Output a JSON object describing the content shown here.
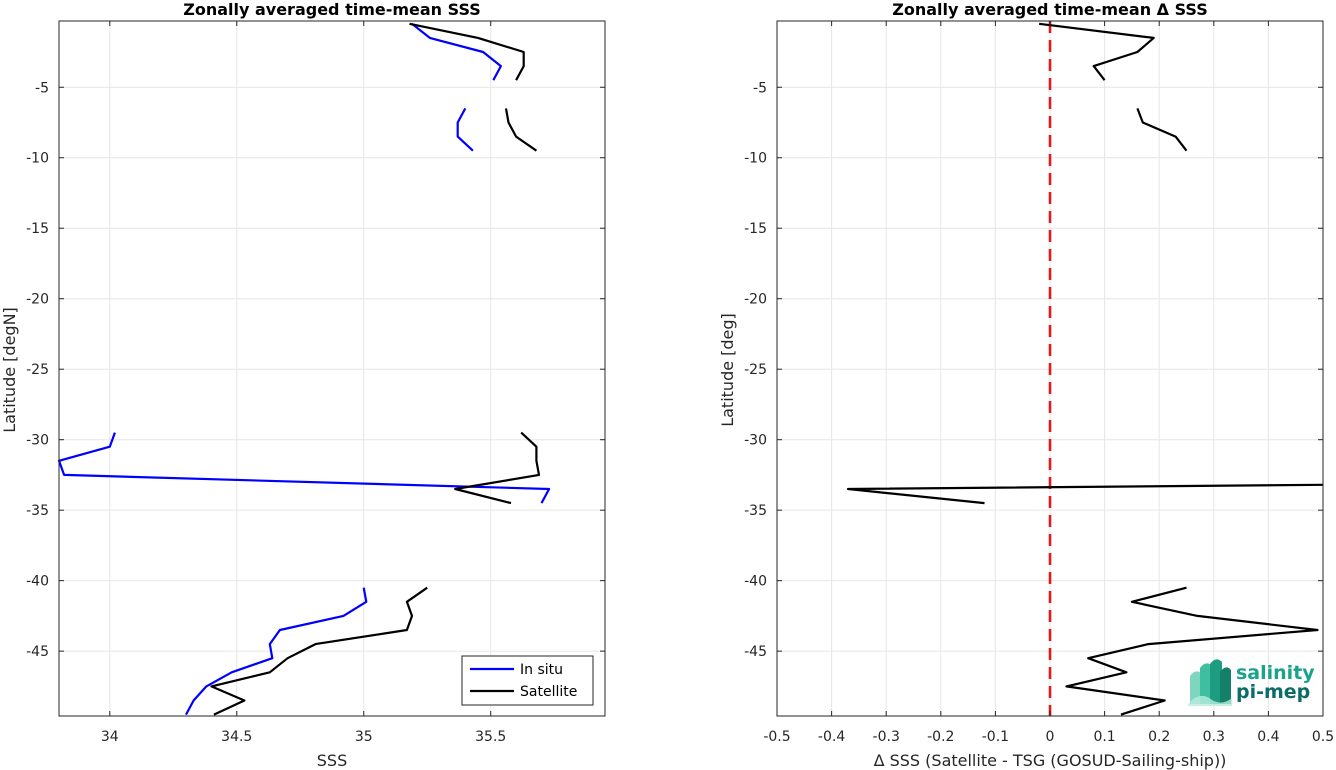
{
  "chart_data": [
    {
      "type": "line",
      "title": "Zonally averaged time-mean SSS",
      "xlabel": "SSS",
      "ylabel": "Latitude [degN]",
      "xlim": [
        33.8,
        35.95
      ],
      "ylim": [
        -49.6,
        -0.3
      ],
      "xticks": [
        34,
        34.5,
        35,
        35.5
      ],
      "xtick_labels": [
        "34",
        "34.5",
        "35",
        "35.5"
      ],
      "yticks": [
        -5,
        -10,
        -15,
        -20,
        -25,
        -30,
        -35,
        -40,
        -45
      ],
      "ytick_labels": [
        "-5",
        "-10",
        "-15",
        "-20",
        "-25",
        "-30",
        "-35",
        "-40",
        "-45"
      ],
      "grid": true,
      "legend_position": "bottom-right",
      "series": [
        {
          "name": "In situ",
          "color": "#0000ff",
          "segments": [
            [
              [
                35.19,
                -0.5
              ],
              [
                35.26,
                -1.5
              ],
              [
                35.47,
                -2.5
              ],
              [
                35.54,
                -3.5
              ],
              [
                35.51,
                -4.5
              ]
            ],
            [
              [
                35.4,
                -6.5
              ],
              [
                35.37,
                -7.5
              ],
              [
                35.37,
                -8.5
              ],
              [
                35.43,
                -9.5
              ]
            ],
            [
              [
                34.02,
                -29.5
              ],
              [
                34.0,
                -30.5
              ],
              [
                33.8,
                -31.5
              ],
              [
                33.82,
                -32.5
              ],
              [
                35.73,
                -33.5
              ],
              [
                35.7,
                -34.5
              ]
            ],
            [
              [
                35.0,
                -40.5
              ],
              [
                35.01,
                -41.5
              ],
              [
                34.92,
                -42.5
              ],
              [
                34.67,
                -43.5
              ],
              [
                34.63,
                -44.5
              ],
              [
                34.64,
                -45.5
              ],
              [
                34.48,
                -46.5
              ],
              [
                34.38,
                -47.5
              ],
              [
                34.33,
                -48.5
              ],
              [
                34.3,
                -49.5
              ]
            ]
          ]
        },
        {
          "name": "Satellite",
          "color": "#000000",
          "segments": [
            [
              [
                35.18,
                -0.5
              ],
              [
                35.45,
                -1.5
              ],
              [
                35.63,
                -2.5
              ],
              [
                35.63,
                -3.5
              ],
              [
                35.6,
                -4.5
              ]
            ],
            [
              [
                35.56,
                -6.5
              ],
              [
                35.57,
                -7.5
              ],
              [
                35.6,
                -8.5
              ],
              [
                35.68,
                -9.5
              ]
            ],
            [
              [
                35.62,
                -29.5
              ],
              [
                35.68,
                -30.5
              ],
              [
                35.68,
                -31.5
              ],
              [
                35.69,
                -32.5
              ],
              [
                35.36,
                -33.5
              ],
              [
                35.58,
                -34.5
              ]
            ],
            [
              [
                35.25,
                -40.5
              ],
              [
                35.17,
                -41.5
              ],
              [
                35.19,
                -42.5
              ],
              [
                35.17,
                -43.5
              ],
              [
                34.81,
                -44.5
              ],
              [
                34.7,
                -45.5
              ],
              [
                34.63,
                -46.5
              ],
              [
                34.4,
                -47.5
              ],
              [
                34.53,
                -48.5
              ],
              [
                34.41,
                -49.5
              ]
            ]
          ]
        }
      ]
    },
    {
      "type": "line",
      "title": "Zonally averaged time-mean Δ SSS",
      "xlabel": "Δ SSS (Satellite - TSG (GOSUD-Sailing-ship))",
      "ylabel": "Latitude [deg]",
      "xlim": [
        -0.5,
        0.5
      ],
      "ylim": [
        -49.6,
        -0.3
      ],
      "xticks": [
        -0.5,
        -0.4,
        -0.3,
        -0.2,
        -0.1,
        0,
        0.1,
        0.2,
        0.3,
        0.4,
        0.5
      ],
      "xtick_labels": [
        "-0.5",
        "-0.4",
        "-0.3",
        "-0.2",
        "-0.1",
        "0",
        "0.1",
        "0.2",
        "0.3",
        "0.4",
        "0.5"
      ],
      "yticks": [
        -5,
        -10,
        -15,
        -20,
        -25,
        -30,
        -35,
        -40,
        -45
      ],
      "ytick_labels": [
        "-5",
        "-10",
        "-15",
        "-20",
        "-25",
        "-30",
        "-35",
        "-40",
        "-45"
      ],
      "grid": true,
      "reference_line": {
        "x": 0,
        "color": "#e31a1c",
        "style": "dashed"
      },
      "series": [
        {
          "color": "#000000",
          "segments": [
            [
              [
                -0.02,
                -0.5
              ],
              [
                0.19,
                -1.5
              ],
              [
                0.16,
                -2.5
              ],
              [
                0.08,
                -3.5
              ],
              [
                0.1,
                -4.5
              ]
            ],
            [
              [
                0.16,
                -6.5
              ],
              [
                0.17,
                -7.5
              ],
              [
                0.23,
                -8.5
              ],
              [
                0.25,
                -9.5
              ]
            ],
            [
              [
                0.5,
                -33.2
              ],
              [
                -0.37,
                -33.5
              ],
              [
                -0.12,
                -34.5
              ]
            ],
            [
              [
                0.25,
                -40.5
              ],
              [
                0.15,
                -41.5
              ],
              [
                0.27,
                -42.5
              ],
              [
                0.49,
                -43.5
              ],
              [
                0.18,
                -44.5
              ],
              [
                0.07,
                -45.5
              ],
              [
                0.14,
                -46.5
              ],
              [
                0.03,
                -47.5
              ],
              [
                0.21,
                -48.5
              ],
              [
                0.13,
                -49.5
              ]
            ]
          ]
        }
      ]
    }
  ],
  "logo": {
    "line1": "salinity",
    "line2": "pi-mep"
  }
}
